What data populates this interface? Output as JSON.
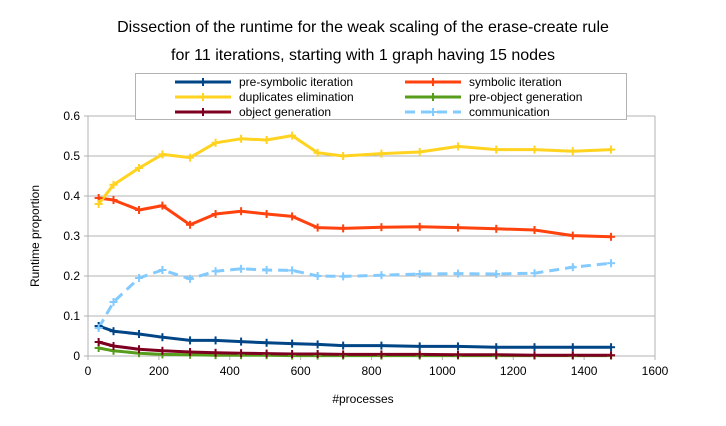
{
  "chart_data": {
    "type": "line",
    "title": "Dissection of the runtime for the weak scaling of the erase-create rule",
    "subtitle": "for 11 iterations, starting with 1 graph having 15 nodes",
    "xlabel": "#processes",
    "ylabel": "Runtime proportion",
    "xlim": [
      0,
      1600
    ],
    "ylim": [
      0,
      0.6
    ],
    "xticks": [
      "0",
      "200",
      "400",
      "600",
      "800",
      "1000",
      "1200",
      "1400",
      "1600"
    ],
    "yticks": [
      "0",
      "0.1",
      "0.2",
      "0.3",
      "0.4",
      "0.5",
      "0.6"
    ],
    "grid": "horizontal",
    "legend_position": "top",
    "x": [
      30,
      72,
      144,
      210,
      288,
      360,
      432,
      504,
      576,
      648,
      720,
      828,
      936,
      1044,
      1152,
      1260,
      1368,
      1476
    ],
    "series": [
      {
        "name": "pre-symbolic iteration",
        "color": "#004586",
        "style": "solid",
        "values": [
          0.075,
          0.062,
          0.055,
          0.047,
          0.039,
          0.039,
          0.036,
          0.033,
          0.031,
          0.029,
          0.026,
          0.026,
          0.024,
          0.024,
          0.022,
          0.022,
          0.022,
          0.022
        ]
      },
      {
        "name": "symbolic iteration",
        "color": "#ff420e",
        "style": "solid",
        "values": [
          0.395,
          0.39,
          0.365,
          0.376,
          0.328,
          0.355,
          0.362,
          0.355,
          0.349,
          0.321,
          0.319,
          0.322,
          0.323,
          0.321,
          0.318,
          0.315,
          0.301,
          0.298
        ]
      },
      {
        "name": "duplicates elimination",
        "color": "#ffd320",
        "style": "solid",
        "values": [
          0.38,
          0.428,
          0.47,
          0.504,
          0.496,
          0.533,
          0.543,
          0.54,
          0.551,
          0.508,
          0.5,
          0.506,
          0.51,
          0.524,
          0.516,
          0.516,
          0.512,
          0.516
        ]
      },
      {
        "name": "pre-object generation",
        "color": "#579d1c",
        "style": "solid",
        "values": [
          0.02,
          0.013,
          0.007,
          0.004,
          0.003,
          0.002,
          0.002,
          0.002,
          0.001,
          0.001,
          0.001,
          0.001,
          0.001,
          0.001,
          0.001,
          0.001,
          0.001,
          0.001
        ]
      },
      {
        "name": "object generation",
        "color": "#7e0021",
        "style": "solid",
        "values": [
          0.035,
          0.025,
          0.017,
          0.013,
          0.01,
          0.008,
          0.007,
          0.006,
          0.005,
          0.005,
          0.004,
          0.004,
          0.004,
          0.003,
          0.003,
          0.002,
          0.002,
          0.002
        ]
      },
      {
        "name": "communication",
        "color": "#83caff",
        "style": "dashed",
        "values": [
          0.07,
          0.135,
          0.195,
          0.215,
          0.193,
          0.212,
          0.218,
          0.215,
          0.214,
          0.2,
          0.199,
          0.202,
          0.205,
          0.206,
          0.205,
          0.207,
          0.222,
          0.232
        ]
      }
    ]
  }
}
